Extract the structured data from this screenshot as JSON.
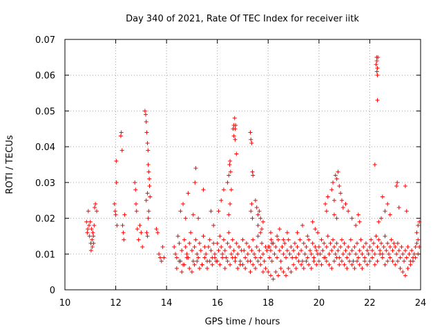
{
  "chart_data": {
    "type": "scatter",
    "title": "Day 340 of 2021, Rate Of TEC Index for receiver iitk",
    "xlabel": "GPS time / hours",
    "ylabel": "ROTI / TECUs",
    "xlim": [
      10,
      24
    ],
    "ylim": [
      0,
      0.07
    ],
    "x_ticks": [
      "10",
      "12",
      "14",
      "16",
      "18",
      "20",
      "22",
      "24"
    ],
    "y_ticks": [
      "0",
      "0.01",
      "0.02",
      "0.03",
      "0.04",
      "0.05",
      "0.06",
      "0.07"
    ],
    "grid": true,
    "marker": "+",
    "color": "#ff0000",
    "series": [
      {
        "x": [
          10.85,
          10.88,
          10.9,
          10.92,
          10.95,
          10.97,
          11.0,
          11.02,
          11.03,
          11.05,
          11.07,
          11.08,
          11.1,
          11.12,
          11.13,
          11.15,
          11.17,
          11.2,
          11.25,
          11.95,
          11.98,
          12.0,
          12.02,
          12.03,
          12.05,
          12.2,
          12.22,
          12.25,
          12.27,
          12.3,
          12.32,
          12.35,
          12.75,
          12.78,
          12.8,
          12.82,
          12.85,
          12.9,
          12.95,
          13.0,
          13.05,
          13.15,
          13.18,
          13.2,
          13.22,
          13.25,
          13.27,
          13.28,
          13.3,
          13.32,
          13.33,
          13.35,
          13.22,
          13.25,
          13.28,
          13.3,
          13.2,
          13.25,
          13.6,
          13.65,
          13.7,
          13.75,
          13.8,
          13.85,
          13.9,
          14.3,
          14.35,
          14.4,
          14.45,
          14.5,
          14.55,
          14.6,
          14.65,
          14.7,
          14.75,
          14.8,
          14.85,
          14.9,
          14.95,
          15.0,
          15.05,
          15.1,
          15.15,
          15.2,
          15.25,
          15.3,
          15.35,
          15.4,
          15.45,
          15.5,
          15.55,
          15.6,
          15.65,
          15.7,
          15.75,
          15.8,
          15.85,
          15.9,
          15.95,
          14.4,
          14.5,
          14.6,
          14.7,
          14.8,
          14.9,
          15.0,
          15.1,
          15.2,
          15.3,
          15.4,
          15.5,
          15.6,
          15.7,
          15.8,
          15.9,
          14.55,
          14.65,
          14.75,
          14.85,
          15.05,
          15.15,
          15.12,
          15.25,
          15.45,
          15.75,
          15.85,
          16.0,
          16.05,
          16.1,
          16.15,
          16.2,
          16.25,
          16.3,
          16.35,
          16.4,
          16.45,
          16.5,
          16.55,
          16.6,
          16.65,
          16.7,
          16.75,
          16.8,
          16.85,
          16.9,
          16.95,
          16.0,
          16.1,
          16.2,
          16.3,
          16.4,
          16.5,
          16.6,
          16.7,
          16.8,
          16.9,
          16.05,
          16.15,
          16.25,
          16.4,
          16.45,
          16.48,
          16.5,
          16.52,
          16.55,
          16.5,
          16.45,
          16.62,
          16.65,
          16.68,
          16.7,
          16.72,
          16.65,
          16.7,
          16.75,
          17.0,
          17.05,
          17.1,
          17.15,
          17.2,
          17.25,
          17.3,
          17.35,
          17.4,
          17.45,
          17.5,
          17.55,
          17.6,
          17.65,
          17.7,
          17.75,
          17.8,
          17.85,
          17.9,
          17.95,
          17.0,
          17.1,
          17.2,
          17.3,
          17.4,
          17.5,
          17.6,
          17.7,
          17.8,
          17.9,
          17.3,
          17.32,
          17.35,
          17.38,
          17.4,
          17.35,
          17.32,
          17.38,
          17.5,
          17.55,
          17.6,
          17.65,
          17.7,
          17.75,
          17.8,
          17.6,
          17.7,
          18.0,
          18.05,
          18.1,
          18.15,
          18.2,
          18.25,
          18.3,
          18.35,
          18.4,
          18.45,
          18.5,
          18.55,
          18.6,
          18.65,
          18.7,
          18.75,
          18.8,
          18.85,
          18.9,
          18.95,
          18.0,
          18.1,
          18.2,
          18.3,
          18.4,
          18.5,
          18.6,
          18.7,
          18.8,
          18.9,
          18.05,
          18.12,
          18.1,
          18.15,
          18.35,
          18.45,
          18.6,
          18.75,
          19.0,
          19.05,
          19.1,
          19.15,
          19.2,
          19.25,
          19.3,
          19.35,
          19.4,
          19.45,
          19.5,
          19.55,
          19.6,
          19.65,
          19.7,
          19.75,
          19.8,
          19.85,
          19.9,
          19.95,
          19.0,
          19.1,
          19.2,
          19.3,
          19.4,
          19.5,
          19.6,
          19.7,
          19.8,
          19.9,
          19.15,
          19.35,
          19.55,
          19.75,
          19.85,
          19.95,
          20.0,
          20.05,
          20.1,
          20.15,
          20.2,
          20.25,
          20.3,
          20.35,
          20.4,
          20.45,
          20.5,
          20.55,
          20.6,
          20.65,
          20.7,
          20.75,
          20.8,
          20.85,
          20.9,
          20.95,
          20.0,
          20.1,
          20.2,
          20.3,
          20.4,
          20.5,
          20.6,
          20.7,
          20.8,
          20.9,
          20.25,
          20.3,
          20.35,
          20.5,
          20.55,
          20.6,
          20.65,
          20.7,
          20.75,
          20.8,
          20.85,
          20.9,
          20.95,
          20.6,
          20.7,
          21.0,
          21.05,
          21.1,
          21.15,
          21.2,
          21.25,
          21.3,
          21.35,
          21.4,
          21.45,
          21.5,
          21.55,
          21.6,
          21.65,
          21.7,
          21.75,
          21.8,
          21.85,
          21.9,
          21.95,
          21.0,
          21.1,
          21.2,
          21.3,
          21.4,
          21.5,
          21.6,
          21.7,
          21.8,
          21.9,
          21.05,
          21.15,
          21.3,
          21.45,
          21.55,
          21.6,
          22.0,
          22.05,
          22.1,
          22.15,
          22.2,
          22.25,
          22.3,
          22.35,
          22.4,
          22.45,
          22.5,
          22.55,
          22.6,
          22.65,
          22.7,
          22.75,
          22.8,
          22.85,
          22.9,
          22.95,
          22.0,
          22.1,
          22.2,
          22.3,
          22.4,
          22.5,
          22.6,
          22.7,
          22.8,
          22.9,
          22.25,
          22.27,
          22.28,
          22.3,
          22.32,
          22.3,
          22.28,
          22.3,
          22.2,
          22.35,
          22.45,
          22.5,
          22.6,
          22.7,
          22.8,
          23.0,
          23.05,
          23.1,
          23.15,
          23.2,
          23.25,
          23.3,
          23.35,
          23.4,
          23.45,
          23.5,
          23.55,
          23.6,
          23.65,
          23.7,
          23.75,
          23.8,
          23.85,
          23.9,
          23.95,
          23.0,
          23.1,
          23.2,
          23.3,
          23.4,
          23.5,
          23.6,
          23.7,
          23.8,
          23.9,
          23.05,
          23.08,
          23.15,
          23.4,
          23.45,
          23.85,
          23.9,
          23.95
        ],
        "y": [
          0.019,
          0.016,
          0.017,
          0.022,
          0.018,
          0.015,
          0.019,
          0.013,
          0.011,
          0.017,
          0.014,
          0.012,
          0.016,
          0.015,
          0.013,
          0.018,
          0.023,
          0.024,
          0.022,
          0.024,
          0.022,
          0.021,
          0.036,
          0.03,
          0.018,
          0.043,
          0.044,
          0.039,
          0.018,
          0.016,
          0.014,
          0.021,
          0.03,
          0.028,
          0.024,
          0.022,
          0.017,
          0.014,
          0.018,
          0.016,
          0.012,
          0.05,
          0.049,
          0.047,
          0.044,
          0.041,
          0.039,
          0.035,
          0.033,
          0.031,
          0.029,
          0.026,
          0.016,
          0.015,
          0.02,
          0.022,
          0.025,
          0.027,
          0.017,
          0.016,
          0.01,
          0.009,
          0.008,
          0.012,
          0.009,
          0.012,
          0.01,
          0.009,
          0.015,
          0.013,
          0.008,
          0.011,
          0.007,
          0.014,
          0.012,
          0.01,
          0.009,
          0.013,
          0.016,
          0.011,
          0.008,
          0.012,
          0.014,
          0.01,
          0.009,
          0.013,
          0.011,
          0.007,
          0.015,
          0.012,
          0.01,
          0.008,
          0.012,
          0.014,
          0.011,
          0.009,
          0.013,
          0.01,
          0.008,
          0.006,
          0.008,
          0.005,
          0.007,
          0.009,
          0.006,
          0.005,
          0.007,
          0.008,
          0.006,
          0.007,
          0.009,
          0.006,
          0.008,
          0.007,
          0.009,
          0.022,
          0.024,
          0.02,
          0.027,
          0.021,
          0.034,
          0.03,
          0.02,
          0.028,
          0.022,
          0.018,
          0.013,
          0.011,
          0.015,
          0.012,
          0.01,
          0.014,
          0.011,
          0.009,
          0.013,
          0.016,
          0.012,
          0.01,
          0.014,
          0.011,
          0.009,
          0.013,
          0.01,
          0.012,
          0.008,
          0.011,
          0.008,
          0.007,
          0.009,
          0.006,
          0.008,
          0.007,
          0.009,
          0.008,
          0.006,
          0.007,
          0.022,
          0.025,
          0.028,
          0.03,
          0.032,
          0.035,
          0.036,
          0.033,
          0.028,
          0.024,
          0.021,
          0.045,
          0.046,
          0.048,
          0.045,
          0.046,
          0.043,
          0.042,
          0.038,
          0.014,
          0.011,
          0.009,
          0.013,
          0.01,
          0.012,
          0.008,
          0.011,
          0.014,
          0.01,
          0.009,
          0.012,
          0.015,
          0.011,
          0.009,
          0.013,
          0.01,
          0.008,
          0.012,
          0.011,
          0.007,
          0.006,
          0.008,
          0.005,
          0.007,
          0.006,
          0.008,
          0.007,
          0.005,
          0.006,
          0.044,
          0.042,
          0.041,
          0.033,
          0.032,
          0.024,
          0.022,
          0.02,
          0.025,
          0.023,
          0.018,
          0.022,
          0.02,
          0.017,
          0.019,
          0.021,
          0.016,
          0.012,
          0.009,
          0.011,
          0.008,
          0.013,
          0.01,
          0.012,
          0.009,
          0.014,
          0.011,
          0.008,
          0.012,
          0.01,
          0.013,
          0.009,
          0.011,
          0.014,
          0.01,
          0.012,
          0.009,
          0.005,
          0.004,
          0.003,
          0.005,
          0.004,
          0.006,
          0.005,
          0.004,
          0.006,
          0.005,
          0.012,
          0.014,
          0.016,
          0.013,
          0.015,
          0.017,
          0.014,
          0.016,
          0.011,
          0.013,
          0.009,
          0.012,
          0.01,
          0.014,
          0.011,
          0.008,
          0.013,
          0.01,
          0.012,
          0.009,
          0.014,
          0.011,
          0.01,
          0.013,
          0.009,
          0.012,
          0.011,
          0.01,
          0.007,
          0.006,
          0.008,
          0.007,
          0.006,
          0.008,
          0.007,
          0.006,
          0.008,
          0.007,
          0.016,
          0.018,
          0.015,
          0.019,
          0.017,
          0.016,
          0.012,
          0.01,
          0.014,
          0.011,
          0.013,
          0.009,
          0.012,
          0.015,
          0.01,
          0.013,
          0.011,
          0.014,
          0.012,
          0.01,
          0.013,
          0.011,
          0.009,
          0.012,
          0.014,
          0.01,
          0.008,
          0.007,
          0.009,
          0.008,
          0.007,
          0.006,
          0.008,
          0.009,
          0.007,
          0.008,
          0.024,
          0.022,
          0.026,
          0.028,
          0.03,
          0.025,
          0.032,
          0.031,
          0.033,
          0.029,
          0.027,
          0.025,
          0.023,
          0.021,
          0.02,
          0.013,
          0.011,
          0.009,
          0.012,
          0.01,
          0.014,
          0.011,
          0.008,
          0.012,
          0.01,
          0.013,
          0.009,
          0.011,
          0.014,
          0.01,
          0.012,
          0.009,
          0.013,
          0.011,
          0.01,
          0.007,
          0.006,
          0.008,
          0.007,
          0.006,
          0.008,
          0.007,
          0.006,
          0.008,
          0.007,
          0.024,
          0.022,
          0.02,
          0.018,
          0.021,
          0.019,
          0.012,
          0.014,
          0.011,
          0.013,
          0.01,
          0.015,
          0.012,
          0.014,
          0.011,
          0.013,
          0.01,
          0.012,
          0.015,
          0.011,
          0.013,
          0.01,
          0.012,
          0.014,
          0.011,
          0.013,
          0.008,
          0.009,
          0.007,
          0.008,
          0.01,
          0.009,
          0.007,
          0.008,
          0.009,
          0.008,
          0.063,
          0.065,
          0.064,
          0.062,
          0.065,
          0.053,
          0.061,
          0.06,
          0.035,
          0.019,
          0.02,
          0.026,
          0.022,
          0.024,
          0.021,
          0.012,
          0.01,
          0.013,
          0.011,
          0.009,
          0.012,
          0.01,
          0.008,
          0.011,
          0.009,
          0.012,
          0.01,
          0.008,
          0.011,
          0.009,
          0.01,
          0.012,
          0.013,
          0.014,
          0.012,
          0.007,
          0.008,
          0.006,
          0.005,
          0.004,
          0.006,
          0.007,
          0.008,
          0.009,
          0.01,
          0.029,
          0.03,
          0.023,
          0.029,
          0.022,
          0.016,
          0.018,
          0.019
        ]
      }
    ]
  }
}
